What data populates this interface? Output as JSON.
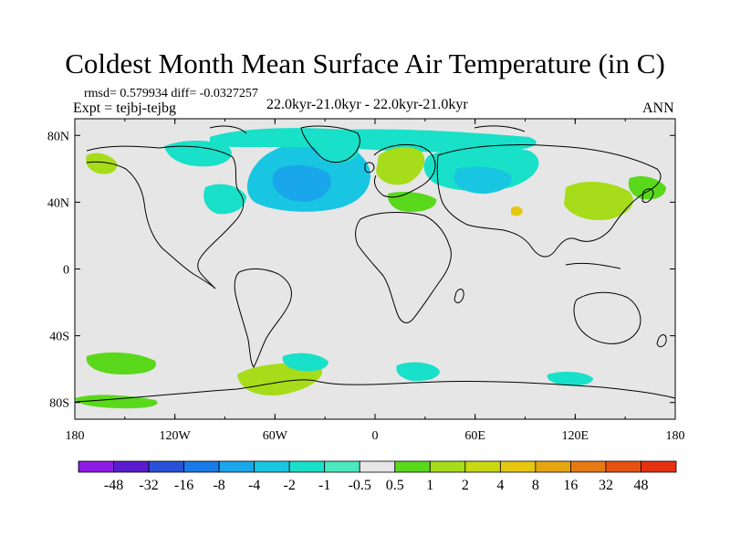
{
  "title": "Coldest Month Mean Surface Air Temperature (in C)",
  "stats": "rmsd= 0.579934 diff= -0.0327257",
  "expt": "Expt = tejbj-tejbg",
  "period": "22.0kyr-21.0kyr - 22.0kyr-21.0kyr",
  "season": "ANN",
  "x_ticks": [
    "180",
    "120W",
    "60W",
    "0",
    "60E",
    "120E",
    "180"
  ],
  "y_ticks": [
    "80N",
    "40N",
    "0",
    "40S",
    "80S"
  ],
  "colorbar": {
    "colors": [
      "#8c1ce6",
      "#5a1ccd",
      "#2a52d8",
      "#1a7ae8",
      "#1aa6ea",
      "#19c6e2",
      "#19e0c8",
      "#4ce8c0",
      "#e6e6e6",
      "#5ad81c",
      "#a6dc19",
      "#c8d812",
      "#e6c812",
      "#e6a612",
      "#e67a12",
      "#e65212",
      "#e63212"
    ],
    "labels": [
      "-48",
      "-32",
      "-16",
      "-8",
      "-4",
      "-2",
      "-1",
      "-0.5",
      "0.5",
      "1",
      "2",
      "4",
      "8",
      "16",
      "32",
      "48"
    ]
  },
  "field_colors": {
    "cool_strong": "#1aa6ea",
    "cool": "#19c6e2",
    "cool_light": "#19e0c8",
    "warm_light": "#5ad81c",
    "warm": "#a6dc19",
    "warm_strong": "#e6c812",
    "neutral": "#e6e6e6"
  }
}
